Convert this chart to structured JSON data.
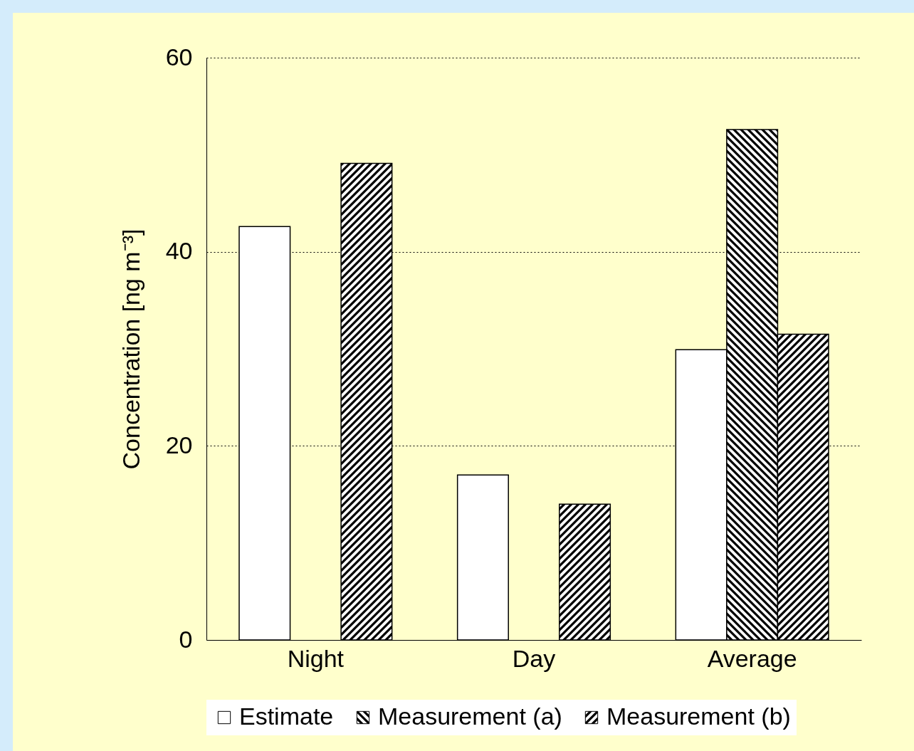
{
  "chart_data": {
    "type": "bar",
    "ylabel": "Concentration [ng m⁻³]",
    "categories": [
      "Night",
      "Day",
      "Average"
    ],
    "series": [
      {
        "name": "Estimate",
        "color": "#ffffff",
        "values": [
          42.6,
          17.0,
          29.9
        ]
      },
      {
        "name": "Measurement (a)",
        "color": "#000000",
        "values": [
          null,
          null,
          52.6
        ]
      },
      {
        "name": "Measurement (b)",
        "color": "#000000",
        "values": [
          49.1,
          14.0,
          31.5
        ]
      }
    ],
    "ylim": [
      0,
      60
    ],
    "yticks": [
      0,
      20,
      40,
      60
    ],
    "grid": "y",
    "legend": "bottom"
  }
}
